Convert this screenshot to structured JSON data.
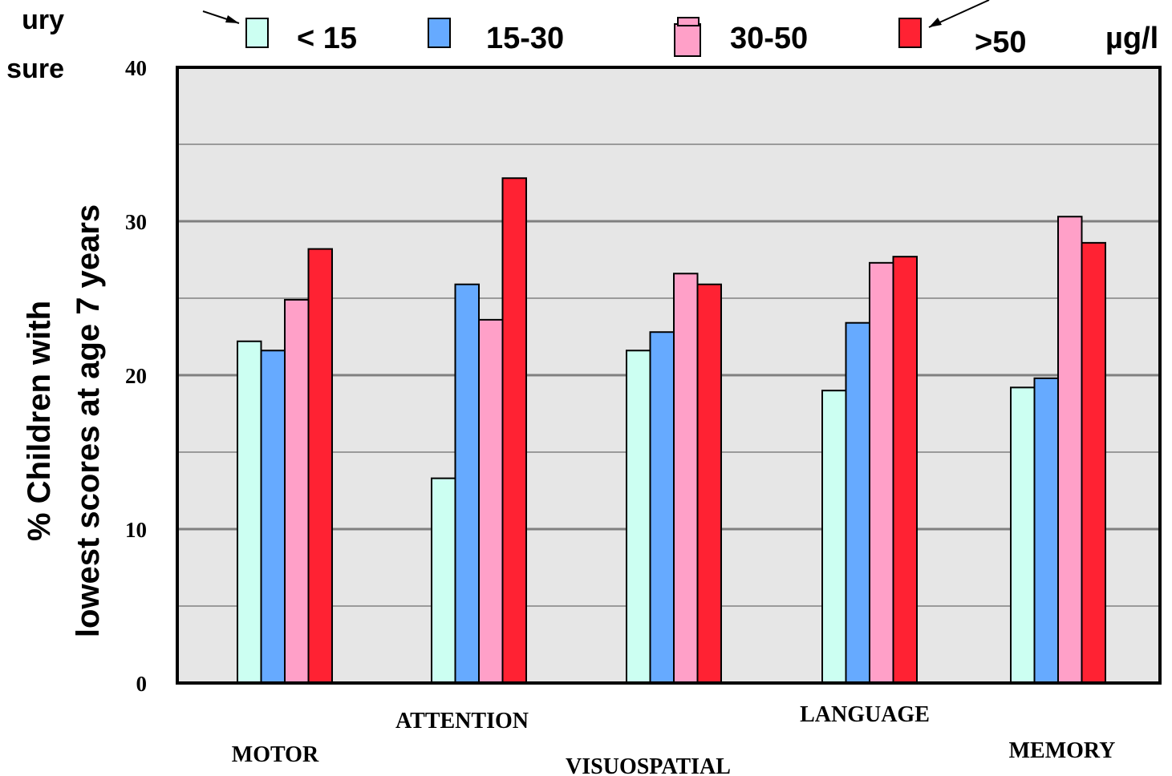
{
  "chart_data": {
    "type": "bar",
    "title_fragments": [
      "ury",
      "sure"
    ],
    "ylabel_lines": [
      "% Children with",
      "lowest scores at age 7 years"
    ],
    "unit": "µg/l",
    "ylim": [
      0,
      40
    ],
    "y_ticks": [
      "0",
      "10",
      "20",
      "30",
      "40"
    ],
    "grid": true,
    "legend_position": "top",
    "categories": [
      "MOTOR",
      "ATTENTION",
      "VISUOSPATIAL",
      "LANGUAGE",
      "MEMORY"
    ],
    "series": [
      {
        "name": "< 15",
        "color": "#ccfff2",
        "values": [
          22.2,
          13.3,
          21.6,
          19.0,
          19.2
        ]
      },
      {
        "name": "15-30",
        "color": "#66aaff",
        "values": [
          21.6,
          25.9,
          22.8,
          23.4,
          19.8
        ]
      },
      {
        "name": "30-50",
        "color": "#ffa0c8",
        "values": [
          24.9,
          23.6,
          26.6,
          27.3,
          30.3
        ]
      },
      {
        "name": ">50",
        "color": "#ff2233",
        "values": [
          28.2,
          32.8,
          25.9,
          27.7,
          28.6
        ]
      }
    ],
    "colors": {
      "plot_background": "#e6e6e6",
      "gridline": "#808080",
      "frame": "#000000"
    }
  }
}
